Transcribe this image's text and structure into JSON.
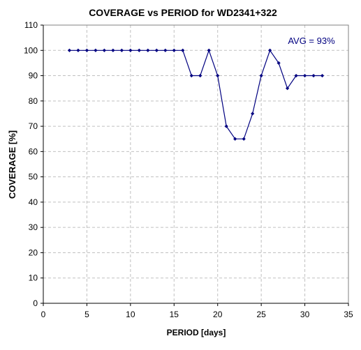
{
  "chart_data": {
    "type": "line",
    "title": "COVERAGE vs PERIOD for WD2341+322",
    "xlabel": "PERIOD [days]",
    "ylabel": "COVERAGE [%]",
    "xlim": [
      0,
      35
    ],
    "ylim": [
      0,
      110
    ],
    "xticks": [
      0,
      5,
      10,
      15,
      20,
      25,
      30,
      35
    ],
    "yticks": [
      0,
      10,
      20,
      30,
      40,
      50,
      60,
      70,
      80,
      90,
      100,
      110
    ],
    "grid": true,
    "annotation": "AVG = 93%",
    "series": [
      {
        "x": [
          3,
          4,
          5,
          6,
          7,
          8,
          9,
          10,
          11,
          12,
          13,
          14,
          15,
          16,
          17,
          18,
          19,
          20,
          21,
          22,
          23,
          24,
          25,
          26,
          27,
          28,
          29,
          30,
          31,
          32
        ],
        "y": [
          100,
          100,
          100,
          100,
          100,
          100,
          100,
          100,
          100,
          100,
          100,
          100,
          100,
          100,
          90,
          90,
          100,
          90,
          70,
          65,
          65,
          75,
          90,
          100,
          95,
          85,
          90,
          90,
          90,
          90
        ]
      }
    ],
    "colors": {
      "line": "#000080",
      "marker": "#000080",
      "grid": "#c0c0c0",
      "annotation": "#000080",
      "axis": "#000000"
    }
  }
}
